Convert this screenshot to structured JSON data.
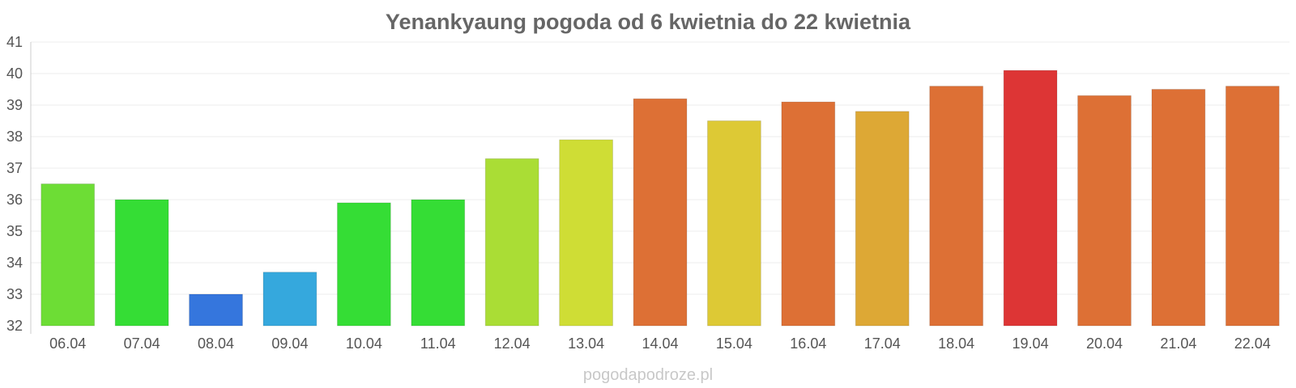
{
  "chart_data": {
    "type": "bar",
    "title": "Yenankyaung pogoda od 6 kwietnia do 22 kwietnia",
    "xlabel": "",
    "ylabel": "",
    "ylim": [
      32,
      41
    ],
    "yticks": [
      "32",
      "33",
      "34",
      "35",
      "36",
      "37",
      "38",
      "39",
      "40",
      "41"
    ],
    "categories": [
      "06.04",
      "07.04",
      "08.04",
      "09.04",
      "10.04",
      "11.04",
      "12.04",
      "13.04",
      "14.04",
      "15.04",
      "16.04",
      "17.04",
      "18.04",
      "19.04",
      "20.04",
      "21.04",
      "22.04"
    ],
    "values": [
      36.5,
      36.0,
      33.0,
      33.7,
      35.9,
      36.0,
      37.3,
      37.9,
      39.2,
      38.5,
      39.1,
      38.8,
      39.6,
      40.1,
      39.3,
      39.5,
      39.6
    ],
    "colors": [
      "#6ddd35",
      "#35dd35",
      "#3576dd",
      "#35a8dd",
      "#35dd35",
      "#35dd35",
      "#aadd35",
      "#cfdd35",
      "#dd7035",
      "#ddc935",
      "#dd7035",
      "#dda835",
      "#dd7035",
      "#dd3535",
      "#dd7035",
      "#dd7035",
      "#dd7035"
    ],
    "grid": true,
    "legend": "none"
  },
  "credit": "pogodapodroze.pl"
}
